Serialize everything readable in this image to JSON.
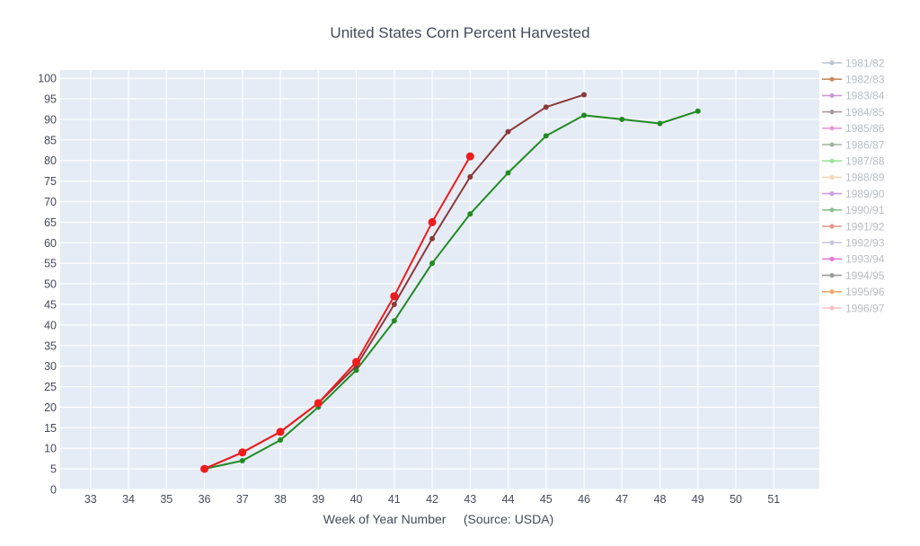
{
  "chart_data": {
    "type": "line",
    "title": "United States Corn Percent Harvested",
    "xlabel": "Week of Year Number     (Source: USDA)",
    "ylabel": "",
    "x_ticks": [
      33,
      34,
      35,
      36,
      37,
      38,
      39,
      40,
      41,
      42,
      43,
      44,
      45,
      46,
      47,
      48,
      49,
      50,
      51
    ],
    "y_ticks": [
      0,
      5,
      10,
      15,
      20,
      25,
      30,
      35,
      40,
      45,
      50,
      55,
      60,
      65,
      70,
      75,
      80,
      85,
      90,
      95,
      100
    ],
    "xlim": [
      32.2,
      52.2
    ],
    "ylim": [
      0,
      102
    ],
    "grid": true,
    "legend_position": "right",
    "legend": [
      {
        "name": "1981/82",
        "color": "#b8c3d3"
      },
      {
        "name": "1982/83",
        "color": "#c98a5e"
      },
      {
        "name": "1983/84",
        "color": "#c99ad4"
      },
      {
        "name": "1984/85",
        "color": "#a89a9a"
      },
      {
        "name": "1985/86",
        "color": "#e79ad9"
      },
      {
        "name": "1986/87",
        "color": "#9ab79a"
      },
      {
        "name": "1987/88",
        "color": "#9be59b"
      },
      {
        "name": "1988/89",
        "color": "#f2d7b4"
      },
      {
        "name": "1989/90",
        "color": "#cf9be6"
      },
      {
        "name": "1990/91",
        "color": "#8dc08d"
      },
      {
        "name": "1991/92",
        "color": "#e8958a"
      },
      {
        "name": "1992/93",
        "color": "#c9c9dd"
      },
      {
        "name": "1993/94",
        "color": "#e57bd4"
      },
      {
        "name": "1994/95",
        "color": "#9a9a9a"
      },
      {
        "name": "1995/96",
        "color": "#f2a772"
      },
      {
        "name": "1996/97",
        "color": "#f2c4c0"
      }
    ],
    "series": [
      {
        "color": "#228b22",
        "marker_size": 3,
        "x": [
          36,
          37,
          38,
          39,
          40,
          41,
          42,
          43,
          44,
          45,
          46,
          47,
          48,
          49
        ],
        "values": [
          5,
          7,
          12,
          20,
          29,
          41,
          55,
          67,
          77,
          86,
          91,
          90,
          89,
          92
        ]
      },
      {
        "color": "#8b3a3a",
        "marker_size": 3,
        "x": [
          36,
          37,
          38,
          39,
          40,
          41,
          42,
          43,
          44,
          45,
          46
        ],
        "values": [
          5,
          9,
          14,
          21,
          30,
          45,
          61,
          76,
          87,
          93,
          96
        ]
      },
      {
        "color": "#ee1c1c",
        "marker_size": 4.5,
        "x": [
          36,
          37,
          38,
          39,
          40,
          41,
          42,
          43
        ],
        "values": [
          5,
          9,
          14,
          21,
          31,
          47,
          65,
          81
        ]
      }
    ]
  }
}
